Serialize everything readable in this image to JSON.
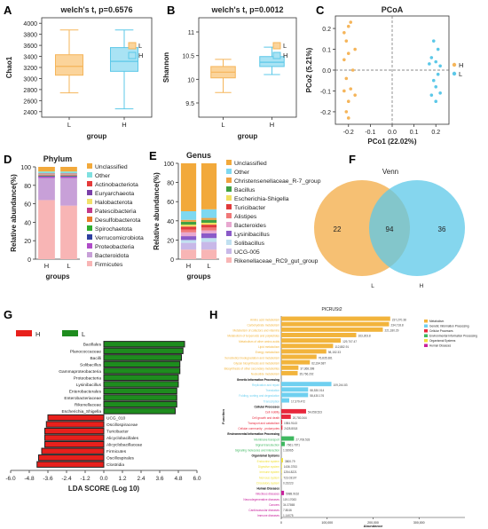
{
  "colors": {
    "L": "#F5B55A",
    "H": "#5CC8E8",
    "L_fill": "#FBD49B",
    "H_fill": "#A9E3F4",
    "lda_H": "#E8201C",
    "lda_L": "#1E8C1E"
  },
  "chart_data": [
    {
      "panel": "A",
      "type": "boxplot",
      "title": "welch's t,  p=0.6576",
      "xlabel": "group",
      "ylabel": "Chao1",
      "categories": [
        "L",
        "H"
      ],
      "legend": [
        "L",
        "H"
      ],
      "ylim": [
        2300,
        4100
      ],
      "yticks": [
        2400,
        2600,
        2800,
        3000,
        3200,
        3400,
        3600,
        3800,
        4000
      ],
      "boxes": [
        {
          "name": "L",
          "min": 2740,
          "q1": 3060,
          "median": 3220,
          "q3": 3430,
          "max": 3880
        },
        {
          "name": "H",
          "min": 2450,
          "q1": 3130,
          "median": 3310,
          "q3": 3560,
          "max": 3880
        }
      ]
    },
    {
      "panel": "B",
      "type": "boxplot",
      "title": "welch's t,  p=0.0012",
      "xlabel": "group",
      "ylabel": "Shannon",
      "categories": [
        "L",
        "H"
      ],
      "legend": [
        "L",
        "H"
      ],
      "ylim": [
        9.2,
        11.3
      ],
      "yticks": [
        9.5,
        10.0,
        10.5,
        11.0
      ],
      "boxes": [
        {
          "name": "L",
          "min": 9.72,
          "q1": 10.03,
          "median": 10.15,
          "q3": 10.27,
          "max": 10.42
        },
        {
          "name": "H",
          "min": 10.1,
          "q1": 10.27,
          "median": 10.36,
          "q3": 10.48,
          "max": 10.68
        }
      ]
    },
    {
      "panel": "C",
      "type": "scatter",
      "title": "PCoA",
      "xlabel": "PCo1 (22.02%)",
      "ylabel": "PCo2 (5.21%)",
      "xlim": [
        -0.26,
        0.26
      ],
      "ylim": [
        -0.26,
        0.26
      ],
      "xticks": [
        -0.2,
        -0.1,
        0.0,
        0.1,
        0.2
      ],
      "yticks": [
        -0.2,
        -0.1,
        0.0,
        0.1,
        0.2
      ],
      "legend": [
        "H",
        "L"
      ],
      "series": [
        {
          "name": "H",
          "points": [
            [
              -0.19,
              0.23
            ],
            [
              -0.2,
              0.21
            ],
            [
              -0.22,
              0.18
            ],
            [
              -0.21,
              0.14
            ],
            [
              -0.17,
              0.1
            ],
            [
              -0.2,
              0.08
            ],
            [
              -0.22,
              0.05
            ],
            [
              -0.18,
              0.0
            ],
            [
              -0.21,
              -0.04
            ],
            [
              -0.19,
              -0.09
            ],
            [
              -0.22,
              -0.1
            ],
            [
              -0.17,
              -0.12
            ],
            [
              -0.2,
              -0.15
            ],
            [
              -0.21,
              -0.2
            ],
            [
              -0.2,
              -0.23
            ]
          ]
        },
        {
          "name": "L",
          "points": [
            [
              0.19,
              0.14
            ],
            [
              0.21,
              0.1
            ],
            [
              0.18,
              0.06
            ],
            [
              0.2,
              0.04
            ],
            [
              0.22,
              0.02
            ],
            [
              0.17,
              0.03
            ],
            [
              0.21,
              -0.02
            ],
            [
              0.19,
              -0.05
            ],
            [
              0.2,
              -0.08
            ],
            [
              0.22,
              -0.11
            ],
            [
              0.18,
              -0.12
            ],
            [
              0.2,
              -0.15
            ]
          ]
        }
      ]
    },
    {
      "panel": "D",
      "type": "bar",
      "stacked": true,
      "title": "Phylum",
      "xlabel": "groups",
      "ylabel": "Relative abundance(%)",
      "categories": [
        "H",
        "L"
      ],
      "ylim": [
        0,
        100
      ],
      "yticks": [
        0,
        20,
        40,
        60,
        80,
        100
      ],
      "series": [
        {
          "name": "Firmicutes",
          "color": "#F8B5B5",
          "values": [
            64,
            58
          ]
        },
        {
          "name": "Bacteroidota",
          "color": "#C8A0D8",
          "values": [
            24,
            30
          ]
        },
        {
          "name": "Proteobacteria",
          "color": "#B04CC8",
          "values": [
            1.5,
            1.5
          ]
        },
        {
          "name": "Verrucomicrobiota",
          "color": "#2E3FA0",
          "values": [
            0.5,
            0.5
          ]
        },
        {
          "name": "Spirochaetota",
          "color": "#2EAD2E",
          "values": [
            0.5,
            0.5
          ]
        },
        {
          "name": "Desulfobacterota",
          "color": "#E97A2B",
          "values": [
            0.5,
            0.5
          ]
        },
        {
          "name": "Patescibacteria",
          "color": "#C33A8A",
          "values": [
            0.5,
            0.5
          ]
        },
        {
          "name": "Halobacterota",
          "color": "#F2E16B",
          "values": [
            0.5,
            0.5
          ]
        },
        {
          "name": "Euryarchaeota",
          "color": "#7A3FA8",
          "values": [
            0.5,
            0.5
          ]
        },
        {
          "name": "Actinobacteriota",
          "color": "#E53A3A",
          "values": [
            0.5,
            0.5
          ]
        },
        {
          "name": "Other",
          "color": "#7FE0E0",
          "values": [
            2,
            2
          ]
        },
        {
          "name": "Unclassified",
          "color": "#F2A93B",
          "values": [
            5,
            5
          ]
        }
      ]
    },
    {
      "panel": "E",
      "type": "bar",
      "stacked": true,
      "title": "Genus",
      "xlabel": "groups",
      "ylabel": "Relative abundance(%)",
      "categories": [
        "H",
        "L"
      ],
      "ylim": [
        0,
        100
      ],
      "yticks": [
        0,
        20,
        40,
        60,
        80,
        100
      ],
      "series": [
        {
          "name": "Rikenellaceae_RC9_gut_group",
          "color": "#F8B5B5",
          "values": [
            10,
            10
          ]
        },
        {
          "name": "UCG-005",
          "color": "#C8B8E8",
          "values": [
            7,
            8
          ]
        },
        {
          "name": "Solibacillus",
          "color": "#C0E0F0",
          "values": [
            3,
            4
          ]
        },
        {
          "name": "Lysinibacillus",
          "color": "#8A5AC8",
          "values": [
            4,
            5
          ]
        },
        {
          "name": "Bacteroides",
          "color": "#E8A8D0",
          "values": [
            4,
            3
          ]
        },
        {
          "name": "Alistipes",
          "color": "#F07878",
          "values": [
            3,
            3
          ]
        },
        {
          "name": "Turicibacter",
          "color": "#E03A3A",
          "values": [
            3,
            3
          ]
        },
        {
          "name": "Escherichia-Shigella",
          "color": "#F0E060",
          "values": [
            2,
            2
          ]
        },
        {
          "name": "Bacillus",
          "color": "#40A040",
          "values": [
            3,
            3
          ]
        },
        {
          "name": "Christensenellaceae_R-7_group",
          "color": "#F0A040",
          "values": [
            2,
            2
          ]
        },
        {
          "name": "Other",
          "color": "#7ED8F0",
          "values": [
            9,
            9
          ]
        },
        {
          "name": "Unclassified",
          "color": "#F2A93B",
          "values": [
            50,
            48
          ]
        }
      ]
    },
    {
      "panel": "F",
      "type": "venn",
      "title": "Venn",
      "sets": [
        "L",
        "H"
      ],
      "only_L": 22,
      "intersection": 94,
      "only_H": 36
    },
    {
      "panel": "G",
      "type": "bar",
      "orientation": "horizontal",
      "xlabel": "LDA SCORE (Log 10)",
      "xlim": [
        -6.0,
        6.0
      ],
      "xticks": [
        -6.0,
        -4.8,
        -3.6,
        -2.4,
        -1.2,
        0.0,
        1.2,
        2.4,
        3.6,
        4.8,
        6.0
      ],
      "legend": [
        "H",
        "L"
      ],
      "categories": [
        "Bacillales",
        "Planococcaceae",
        "Bacilli",
        "Solibacillus",
        "Gammaproteobacteria",
        "Proteobacteria",
        "Lysinibacillus",
        "Enterobacterales",
        "Enterobacteriaceae",
        "Rikenellaceae",
        "Escherichia_Shigella",
        "UCG_010",
        "Oscillospiraceae",
        "Turicibacter",
        "Alicyclobacillales",
        "Alicyclobacillaceae",
        "Firmicutes",
        "Oscillospirales",
        "Clostridia"
      ],
      "values": [
        5.2,
        5.1,
        5.0,
        4.9,
        4.9,
        4.8,
        4.8,
        4.7,
        4.7,
        4.7,
        4.6,
        -3.6,
        -3.7,
        -3.8,
        -3.8,
        -3.8,
        -4.0,
        -4.2,
        -4.3
      ],
      "groups": [
        "L",
        "L",
        "L",
        "L",
        "L",
        "L",
        "L",
        "L",
        "L",
        "L",
        "L",
        "H",
        "H",
        "H",
        "H",
        "H",
        "H",
        "H",
        "H"
      ]
    },
    {
      "panel": "H",
      "type": "bar",
      "orientation": "horizontal",
      "title": "PICRUSt2",
      "xlabel": "Abundance",
      "ylabel": "Function",
      "xlim": [
        0,
        400000
      ],
      "xticks": [
        0,
        100000,
        200000,
        300000
      ],
      "legend": [
        {
          "name": "Metabolism",
          "color": "#F2B43C"
        },
        {
          "name": "Genetic Information Processing",
          "color": "#6FD0F0"
        },
        {
          "name": "Cellular Processes",
          "color": "#E8283C"
        },
        {
          "name": "Environmental Information Processing",
          "color": "#3FB860"
        },
        {
          "name": "Organismal Systems",
          "color": "#F0E03C"
        },
        {
          "name": "Human Diseases",
          "color": "#C8209C"
        }
      ],
      "rows": [
        {
          "label": "Amino acid metabolism",
          "group": "Metabolism",
          "value": 237270.38,
          "value_label": "237,270.38"
        },
        {
          "label": "Carbohydrate metabolism",
          "group": "Metabolism",
          "value": 234718.8,
          "value_label": "234,718.8"
        },
        {
          "label": "Metabolism of cofactors and vitamins",
          "group": "Metabolism",
          "value": 221180.29,
          "value_label": "221,180.29"
        },
        {
          "label": "Metabolism of terpenoids and polyketides",
          "group": "Metabolism",
          "value": 163303.8,
          "value_label": "163,303.8"
        },
        {
          "label": "Metabolism of other amino acids",
          "group": "Metabolism",
          "value": 129707.47,
          "value_label": "129,707.47"
        },
        {
          "label": "Lipid metabolism",
          "group": "Metabolism",
          "value": 112882.91,
          "value_label": "112,882.91"
        },
        {
          "label": "Energy metabolism",
          "group": "Metabolism",
          "value": 98152.33,
          "value_label": "98,152.33"
        },
        {
          "label": "Xenobiotics biodegradation and metabolism",
          "group": "Metabolism",
          "value": 76835.381,
          "value_label": "76,835.381"
        },
        {
          "label": "Glycan biosynthesis and metabolism",
          "group": "Metabolism",
          "value": 62334.687,
          "value_label": "62,334.687"
        },
        {
          "label": "Biosynthesis of other secondary metabolites",
          "group": "Metabolism",
          "value": 37368.398,
          "value_label": "37,368.398"
        },
        {
          "label": "Nucleotide metabolism",
          "group": "Metabolism",
          "value": 35766.202,
          "value_label": "35,766.202"
        },
        {
          "label": "Genetic Information Processing",
          "header": true
        },
        {
          "label": "Replication and repair",
          "group": "Genetic Information Processing",
          "value": 109244.83,
          "value_label": "109,244.83"
        },
        {
          "label": "Translation",
          "group": "Genetic Information Processing",
          "value": 58530.014,
          "value_label": "58,530.014"
        },
        {
          "label": "Folding, sorting and degradation",
          "group": "Genetic Information Processing",
          "value": 58430.176,
          "value_label": "58,430.176"
        },
        {
          "label": "Transcription",
          "group": "Genetic Information Processing",
          "value": 17379.472,
          "value_label": "17,379.472"
        },
        {
          "label": "Cellular Processes",
          "header": true
        },
        {
          "label": "Cell motility",
          "group": "Cellular Processes",
          "value": 54058.523,
          "value_label": "54,058.523"
        },
        {
          "label": "Cell growth and death",
          "group": "Cellular Processes",
          "value": 20780.344,
          "value_label": "20,780.344"
        },
        {
          "label": "Transport and catabolism",
          "group": "Cellular Processes",
          "value": 1984.9143,
          "value_label": "1984.9143"
        },
        {
          "label": "Cellular community - prokaryotes",
          "group": "Cellular Processes",
          "value": 2428.8018,
          "value_label": "2428.8018"
        },
        {
          "label": "Environmental Information Processing",
          "header": true
        },
        {
          "label": "Membrane transport",
          "group": "Environmental Information Processing",
          "value": 27708.533,
          "value_label": "27,708.533"
        },
        {
          "label": "Signal transduction",
          "group": "Environmental Information Processing",
          "value": 7661.7871,
          "value_label": "7661.7871"
        },
        {
          "label": "Signaling molecules and interaction",
          "group": "Environmental Information Processing",
          "value": 1.93965,
          "value_label": "1.93965"
        },
        {
          "label": "Organismal Systems",
          "header": true
        },
        {
          "label": "Endocrine system",
          "group": "Organismal Systems",
          "value": 3800.79,
          "value_label": "3800.79"
        },
        {
          "label": "Digestive system",
          "group": "Organismal Systems",
          "value": 1436.3753,
          "value_label": "1436.3753"
        },
        {
          "label": "Immune system",
          "group": "Organismal Systems",
          "value": 1254.8221,
          "value_label": "1254.8221"
        },
        {
          "label": "Nervous system",
          "group": "Organismal Systems",
          "value": 723.03107,
          "value_label": "723.03107"
        },
        {
          "label": "Circulatory system",
          "group": "Organismal Systems",
          "value": 0.23223,
          "value_label": "0.23223"
        },
        {
          "label": "Human Diseases",
          "header": true
        },
        {
          "label": "Infectious diseases",
          "group": "Human Diseases",
          "value": 5988.9162,
          "value_label": "5988.9162"
        },
        {
          "label": "Neurodegenerative diseases",
          "group": "Human Diseases",
          "value": 119.17083,
          "value_label": "119.17083"
        },
        {
          "label": "Cancers",
          "group": "Human Diseases",
          "value": 34.37865,
          "value_label": "34.37865"
        },
        {
          "label": "Cardiovascular diseases",
          "group": "Human Diseases",
          "value": 7.8046,
          "value_label": "7.8046"
        },
        {
          "label": "Immune diseases",
          "group": "Human Diseases",
          "value": 1.14075,
          "value_label": "1.14075"
        }
      ]
    }
  ]
}
